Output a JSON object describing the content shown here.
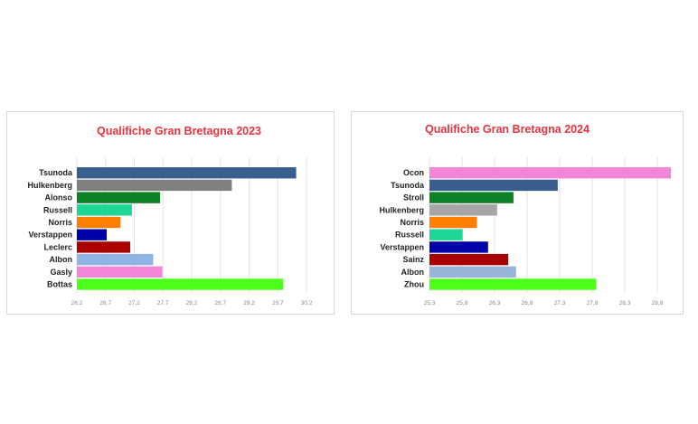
{
  "chart_data": [
    {
      "type": "bar",
      "orientation": "horizontal",
      "title": "Qualifiche Gran Bretagna 2023",
      "categories": [
        "Tsunoda",
        "Hulkenberg",
        "Alonso",
        "Russell",
        "Norris",
        "Verstappen",
        "Leclerc",
        "Albon",
        "Gasly",
        "Bottas"
      ],
      "values": [
        30.02,
        28.9,
        27.65,
        27.16,
        26.96,
        26.72,
        27.13,
        27.53,
        27.69,
        29.79
      ],
      "colors": [
        "#3a5f8f",
        "#808080",
        "#0a8225",
        "#1ed696",
        "#ff8000",
        "#0000aa",
        "#aa0000",
        "#8fb4e3",
        "#f285d8",
        "#4cff1a"
      ],
      "xlim": [
        26.2,
        30.2
      ],
      "xticks": [
        "26,2",
        "26,7",
        "27,2",
        "27,7",
        "28,2",
        "28,7",
        "29,2",
        "29,7",
        "30,2"
      ],
      "xtick_values": [
        26.2,
        26.7,
        27.2,
        27.7,
        28.2,
        28.7,
        29.2,
        29.7,
        30.2
      ],
      "grid": true,
      "xlabel": "",
      "ylabel": ""
    },
    {
      "type": "bar",
      "orientation": "horizontal",
      "title": "Qualifiche Gran Bretagna 2024",
      "categories": [
        "Ocon",
        "Tsunoda",
        "Stroll",
        "Hulkenberg",
        "Norris",
        "Russell",
        "Verstappen",
        "Sainz",
        "Albon",
        "Zhou"
      ],
      "values": [
        29.01,
        27.27,
        26.59,
        26.34,
        26.03,
        25.81,
        26.2,
        26.51,
        26.63,
        27.86
      ],
      "colors": [
        "#f285d8",
        "#3a5f8f",
        "#0a8225",
        "#a6a6a6",
        "#ff8000",
        "#1ed696",
        "#0000aa",
        "#aa0000",
        "#98b4d8",
        "#4cff1a"
      ],
      "xlim": [
        25.3,
        29.0
      ],
      "xticks": [
        "25,3",
        "25,8",
        "26,3",
        "26,8",
        "27,3",
        "27,8",
        "28,3",
        "28,8"
      ],
      "xtick_values": [
        25.3,
        25.8,
        26.3,
        26.8,
        27.3,
        27.8,
        28.3,
        28.8
      ],
      "grid": true,
      "xlabel": "",
      "ylabel": ""
    }
  ]
}
